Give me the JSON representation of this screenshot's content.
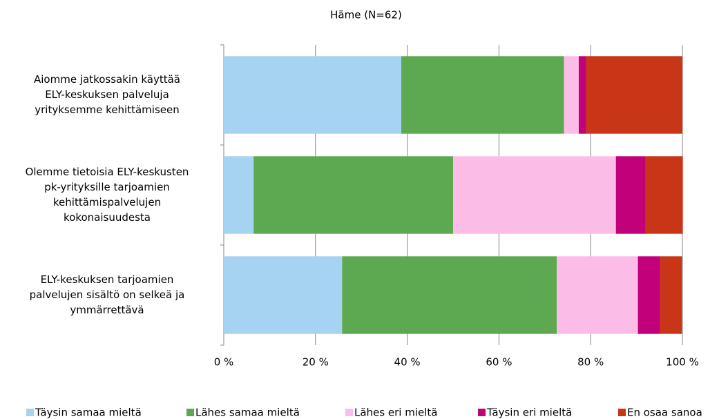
{
  "chart_data": {
    "type": "stacked-bar-horizontal",
    "title": "Häme (N=62)",
    "categories": [
      [
        "Aiomme jatkossakin käyttää",
        "ELY-keskuksen palveluja",
        "yrityksemme kehittämiseen"
      ],
      [
        "Olemme tietoisia ELY-keskusten",
        "pk-yrityksille tarjoamien",
        "kehittämispalvelujen",
        "kokonaisuudesta"
      ],
      [
        "ELY-keskuksen tarjoamien",
        "palvelujen sisältö on selkeä ja",
        "ymmärrettävä"
      ]
    ],
    "series": [
      {
        "name": "Täysin samaa mieltä",
        "color": "#a6d3f2",
        "values": [
          38.7,
          6.5,
          25.8
        ]
      },
      {
        "name": "Lähes samaa mieltä",
        "color": "#5da951",
        "values": [
          35.5,
          43.5,
          46.8
        ]
      },
      {
        "name": "Lähes eri mieltä",
        "color": "#fbbde8",
        "values": [
          3.2,
          35.5,
          17.7
        ]
      },
      {
        "name": "Täysin eri mieltä",
        "color": "#c1007a",
        "values": [
          1.6,
          6.5,
          4.8
        ]
      },
      {
        "name": "En osaa sanoa",
        "color": "#c83517",
        "values": [
          21.0,
          8.1,
          4.8
        ]
      }
    ],
    "xlim": [
      0,
      100
    ],
    "xticks": [
      {
        "value": 0,
        "label": "0 %"
      },
      {
        "value": 20,
        "label": "20 %"
      },
      {
        "value": 40,
        "label": "40 %"
      },
      {
        "value": 60,
        "label": "60 %"
      },
      {
        "value": 80,
        "label": "80 %"
      },
      {
        "value": 100,
        "label": "100 %"
      }
    ],
    "grid": true,
    "legend": "bottom"
  }
}
